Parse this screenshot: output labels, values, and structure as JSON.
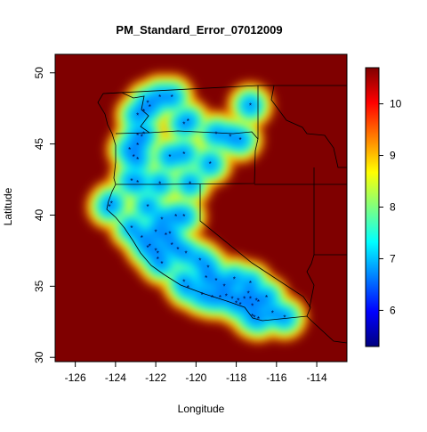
{
  "chart_data": {
    "type": "heatmap",
    "title": "PM_Standard_Error_07012009",
    "xlabel": "Longitude",
    "ylabel": "Latitude",
    "xlim": [
      -127.0,
      -112.5
    ],
    "ylim": [
      29.7,
      51.3
    ],
    "xticks": [
      -126,
      -124,
      -122,
      -120,
      -118,
      -116,
      -114
    ],
    "yticks": [
      30,
      35,
      40,
      45,
      50
    ],
    "colorbar": {
      "min": 5.3,
      "max": 10.7,
      "ticks": [
        6,
        7,
        8,
        9,
        10
      ],
      "palette": [
        "#00007f",
        "#0000ff",
        "#007fff",
        "#00ffff",
        "#7fff7f",
        "#ffff00",
        "#ff7f00",
        "#ff0000",
        "#7f0000"
      ]
    },
    "background_value": 10.7,
    "background_color": "#7f0000",
    "stations": [
      {
        "lon": -121.8,
        "lat": 48.3
      },
      {
        "lon": -122.3,
        "lat": 47.6
      },
      {
        "lon": -122.6,
        "lat": 47.3
      },
      {
        "lon": -122.4,
        "lat": 47.9
      },
      {
        "lon": -121.2,
        "lat": 48.3
      },
      {
        "lon": -122.9,
        "lat": 47.0
      },
      {
        "lon": -117.3,
        "lat": 47.7
      },
      {
        "lon": -120.4,
        "lat": 46.6
      },
      {
        "lon": -120.6,
        "lat": 46.4
      },
      {
        "lon": -122.7,
        "lat": 45.5
      },
      {
        "lon": -122.9,
        "lat": 45.6
      },
      {
        "lon": -122.6,
        "lat": 45.7
      },
      {
        "lon": -123.1,
        "lat": 44.1
      },
      {
        "lon": -122.9,
        "lat": 44.9
      },
      {
        "lon": -123.3,
        "lat": 44.6
      },
      {
        "lon": -122.9,
        "lat": 43.9
      },
      {
        "lon": -121.3,
        "lat": 44.1
      },
      {
        "lon": -120.6,
        "lat": 44.3
      },
      {
        "lon": -119.0,
        "lat": 45.7
      },
      {
        "lon": -118.3,
        "lat": 45.5
      },
      {
        "lon": -117.8,
        "lat": 45.3
      },
      {
        "lon": -119.3,
        "lat": 43.6
      },
      {
        "lon": -123.2,
        "lat": 42.4
      },
      {
        "lon": -122.9,
        "lat": 42.3
      },
      {
        "lon": -121.8,
        "lat": 42.2
      },
      {
        "lon": -120.3,
        "lat": 42.2
      },
      {
        "lon": -124.2,
        "lat": 40.8
      },
      {
        "lon": -124.3,
        "lat": 40.6
      },
      {
        "lon": -122.4,
        "lat": 40.6
      },
      {
        "lon": -121.7,
        "lat": 39.7
      },
      {
        "lon": -121.0,
        "lat": 39.9
      },
      {
        "lon": -120.6,
        "lat": 39.9
      },
      {
        "lon": -122.0,
        "lat": 38.8
      },
      {
        "lon": -121.5,
        "lat": 38.6
      },
      {
        "lon": -121.3,
        "lat": 38.7
      },
      {
        "lon": -122.3,
        "lat": 37.8
      },
      {
        "lon": -122.0,
        "lat": 37.5
      },
      {
        "lon": -121.9,
        "lat": 37.3
      },
      {
        "lon": -122.4,
        "lat": 37.7
      },
      {
        "lon": -121.2,
        "lat": 37.9
      },
      {
        "lon": -120.9,
        "lat": 37.6
      },
      {
        "lon": -120.5,
        "lat": 37.3
      },
      {
        "lon": -119.8,
        "lat": 36.8
      },
      {
        "lon": -119.4,
        "lat": 36.3
      },
      {
        "lon": -119.0,
        "lat": 35.4
      },
      {
        "lon": -119.5,
        "lat": 35.6
      },
      {
        "lon": -121.7,
        "lat": 36.6
      },
      {
        "lon": -121.9,
        "lat": 36.9
      },
      {
        "lon": -122.7,
        "lat": 38.4
      },
      {
        "lon": -123.2,
        "lat": 39.1
      },
      {
        "lon": -120.6,
        "lat": 35.3
      },
      {
        "lon": -120.4,
        "lat": 34.9
      },
      {
        "lon": -119.7,
        "lat": 34.4
      },
      {
        "lon": -119.2,
        "lat": 34.2
      },
      {
        "lon": -118.8,
        "lat": 34.2
      },
      {
        "lon": -118.5,
        "lat": 34.3
      },
      {
        "lon": -118.2,
        "lat": 34.1
      },
      {
        "lon": -117.9,
        "lat": 34.0
      },
      {
        "lon": -117.6,
        "lat": 34.1
      },
      {
        "lon": -117.3,
        "lat": 34.1
      },
      {
        "lon": -117.0,
        "lat": 34.0
      },
      {
        "lon": -117.4,
        "lat": 34.5
      },
      {
        "lon": -118.0,
        "lat": 33.8
      },
      {
        "lon": -117.8,
        "lat": 33.7
      },
      {
        "lon": -117.2,
        "lat": 33.6
      },
      {
        "lon": -117.1,
        "lat": 32.8
      },
      {
        "lon": -116.9,
        "lat": 32.7
      },
      {
        "lon": -117.2,
        "lat": 32.9
      },
      {
        "lon": -116.2,
        "lat": 33.1
      },
      {
        "lon": -115.6,
        "lat": 32.8
      },
      {
        "lon": -117.3,
        "lat": 35.2
      },
      {
        "lon": -118.1,
        "lat": 35.5
      },
      {
        "lon": -118.6,
        "lat": 35.0
      },
      {
        "lon": -116.5,
        "lat": 34.2
      },
      {
        "lon": -116.9,
        "lat": 33.9
      }
    ]
  }
}
